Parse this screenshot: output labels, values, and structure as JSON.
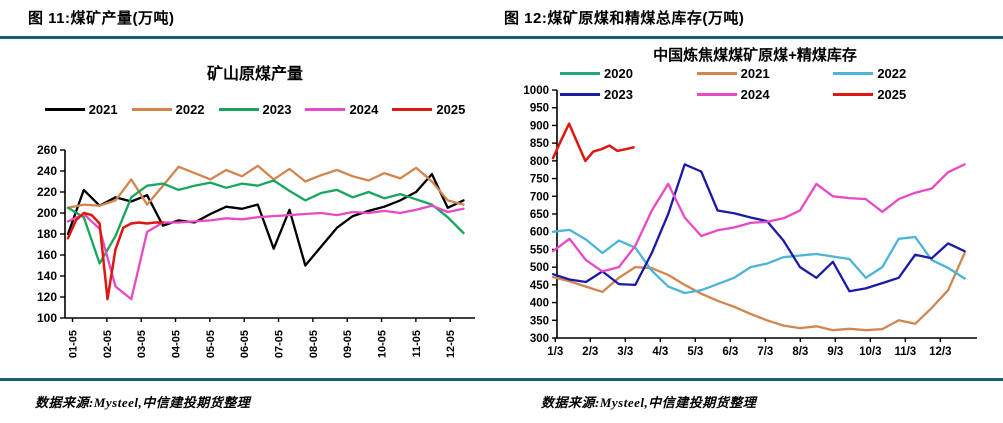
{
  "page": {
    "left_figure_title": "图 11:煤矿产量(万吨)",
    "right_figure_title": "图 12:煤矿原煤和精煤总库存(万吨)",
    "left_source": "数据来源:Mysteel,中信建投期货整理",
    "right_source": "数据来源:Mysteel,中信建投期货整理"
  },
  "colors": {
    "divider_rule": "#1E5F78",
    "axis": "#000000",
    "black_2021": "#000000",
    "tan_orange": "#D2854F",
    "green": "#17A65C",
    "magenta": "#E84AC6",
    "red": "#DE1712",
    "cyan_2022": "#4BB4D8",
    "navy_2023": "#1B1BA8"
  },
  "chart_data": [
    {
      "type": "line",
      "title": "矿山原煤产量",
      "xlabel": "",
      "ylabel": "",
      "ylim": [
        100,
        260
      ],
      "ytick_step": 20,
      "grid": false,
      "legend_position": "top",
      "x_tick_labels": [
        "01-05",
        "02-05",
        "03-05",
        "04-05",
        "05-05",
        "06-05",
        "07-05",
        "08-05",
        "09-05",
        "10-05",
        "11-05",
        "12-05"
      ],
      "series": [
        {
          "name": "2021",
          "color": "#000000",
          "span": 0.96,
          "values": [
            180,
            222,
            207,
            215,
            211,
            217,
            188,
            193,
            191,
            199,
            206,
            204,
            208,
            166,
            203,
            150,
            168,
            186,
            197,
            202,
            206,
            212,
            220,
            237,
            205,
            212
          ]
        },
        {
          "name": "2022",
          "color": "#D2854F",
          "span": 0.96,
          "values": [
            205,
            208,
            207,
            212,
            232,
            208,
            226,
            244,
            238,
            232,
            241,
            235,
            245,
            232,
            242,
            230,
            236,
            241,
            235,
            231,
            238,
            233,
            243,
            230,
            212,
            208
          ]
        },
        {
          "name": "2023",
          "color": "#17A65C",
          "span": 0.96,
          "values": [
            205,
            196,
            152,
            178,
            215,
            226,
            228,
            222,
            226,
            229,
            224,
            228,
            226,
            231,
            221,
            212,
            219,
            222,
            215,
            220,
            214,
            218,
            213,
            208,
            196,
            181
          ]
        },
        {
          "name": "2024",
          "color": "#E84AC6",
          "span": 0.96,
          "values": [
            192,
            199,
            185,
            130,
            118,
            182,
            191,
            191,
            192,
            193,
            195,
            194,
            196,
            197,
            198,
            199,
            200,
            198,
            201,
            200,
            202,
            200,
            203,
            207,
            201,
            204
          ]
        },
        {
          "name": "2025",
          "color": "#DE1712",
          "span": 0.23,
          "values": [
            176,
            193,
            200,
            198,
            190,
            118,
            165,
            186,
            190,
            191,
            190,
            191,
            191
          ]
        }
      ]
    },
    {
      "type": "line",
      "title": "中国炼焦煤煤矿原煤+精煤库存",
      "xlabel": "",
      "ylabel": "",
      "ylim": [
        300,
        1000
      ],
      "ytick_step": 50,
      "grid": false,
      "legend_position": "top",
      "x_tick_labels": [
        "1/3",
        "2/3",
        "3/3",
        "4/3",
        "5/3",
        "6/3",
        "7/3",
        "8/3",
        "9/3",
        "10/3",
        "11/3",
        "12/3"
      ],
      "series": [
        {
          "name": "2020",
          "color": "#21A87C",
          "span": 0.98,
          "values": []
        },
        {
          "name": "2021",
          "color": "#D2854F",
          "span": 0.98,
          "values": [
            472,
            460,
            445,
            430,
            470,
            500,
            497,
            478,
            450,
            425,
            405,
            388,
            368,
            350,
            335,
            328,
            333,
            322,
            326,
            322,
            325,
            350,
            340,
            385,
            435,
            540
          ]
        },
        {
          "name": "2022",
          "color": "#4BB4D8",
          "span": 0.98,
          "values": [
            600,
            605,
            578,
            540,
            575,
            555,
            490,
            445,
            427,
            435,
            452,
            470,
            500,
            510,
            528,
            533,
            537,
            530,
            523,
            470,
            500,
            580,
            585,
            520,
            498,
            468
          ]
        },
        {
          "name": "2023",
          "color": "#1B1BA8",
          "span": 0.98,
          "values": [
            480,
            465,
            458,
            488,
            452,
            450,
            540,
            650,
            790,
            770,
            660,
            652,
            640,
            630,
            575,
            500,
            470,
            515,
            432,
            440,
            455,
            470,
            535,
            525,
            567,
            545
          ]
        },
        {
          "name": "2024",
          "color": "#E84AC6",
          "span": 0.98,
          "values": [
            545,
            580,
            520,
            488,
            500,
            560,
            660,
            735,
            640,
            588,
            604,
            612,
            625,
            628,
            638,
            660,
            735,
            700,
            695,
            692,
            656,
            692,
            710,
            722,
            768,
            790
          ]
        },
        {
          "name": "2025",
          "color": "#DE1712",
          "span": 0.192,
          "values": [
            808,
            858,
            905,
            852,
            800,
            826,
            833,
            843,
            828,
            833,
            838
          ]
        }
      ]
    }
  ]
}
